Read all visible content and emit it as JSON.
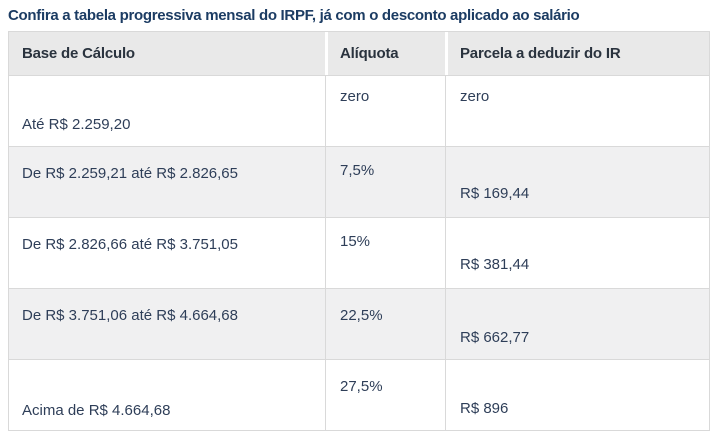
{
  "page": {
    "title": "Confira a tabela progressiva mensal do IRPF, já com o desconto aplicado ao salário"
  },
  "table": {
    "headers": [
      "Base de Cálculo",
      "Alíquota",
      "Parcela a deduzir do IR"
    ],
    "rows": [
      {
        "base": "Até R$ 2.259,20",
        "aliquota": "zero",
        "parcela": "zero"
      },
      {
        "base": "De R$ 2.259,21 até R$ 2.826,65",
        "aliquota": "7,5%",
        "parcela": "R$ 169,44"
      },
      {
        "base": "De R$ 2.826,66 até R$ 3.751,05",
        "aliquota": "15%",
        "parcela": "R$ 381,44"
      },
      {
        "base": "De R$ 3.751,06 até R$ 4.664,68",
        "aliquota": "22,5%",
        "parcela": "R$ 662,77"
      },
      {
        "base": "Acima de R$ 4.664,68",
        "aliquota": "27,5%",
        "parcela": "R$ 896"
      }
    ]
  },
  "colors": {
    "title_text": "#1c3c63",
    "header_text": "#2a333e",
    "cell_text": "#2e3e58",
    "header_bg": "#e9e9e9",
    "stripe_bg": "#f0f0f1",
    "row_bg": "#ffffff",
    "border": "#d9d9d9"
  }
}
